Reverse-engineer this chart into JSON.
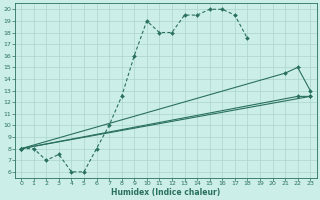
{
  "xlabel": "Humidex (Indice chaleur)",
  "bg_color": "#cceee8",
  "grid_color": "#aad4cc",
  "line_color": "#2a7060",
  "xlim": [
    -0.5,
    23.5
  ],
  "ylim": [
    5.5,
    20.5
  ],
  "xticks": [
    0,
    1,
    2,
    3,
    4,
    5,
    6,
    7,
    8,
    9,
    10,
    11,
    12,
    13,
    14,
    15,
    16,
    17,
    18,
    19,
    20,
    21,
    22,
    23
  ],
  "yticks": [
    6,
    7,
    8,
    9,
    10,
    11,
    12,
    13,
    14,
    15,
    16,
    17,
    18,
    19,
    20
  ],
  "curve1_x": [
    0,
    1,
    2,
    3,
    4,
    5,
    6,
    7,
    8,
    9,
    10,
    11,
    12,
    13,
    14,
    15,
    16,
    17,
    18
  ],
  "curve1_y": [
    8,
    8,
    7,
    7.5,
    6,
    6,
    8,
    10,
    12.5,
    16,
    19,
    18,
    18,
    19.5,
    19.5,
    20,
    20,
    19.5,
    17.5
  ],
  "curve2_x": [
    0,
    21,
    22,
    23
  ],
  "curve2_y": [
    8,
    14.5,
    15,
    13
  ],
  "curve3_x": [
    0,
    22,
    23
  ],
  "curve3_y": [
    8,
    12.5,
    12.5
  ],
  "curve4_x": [
    0,
    23
  ],
  "curve4_y": [
    8,
    12.5
  ]
}
